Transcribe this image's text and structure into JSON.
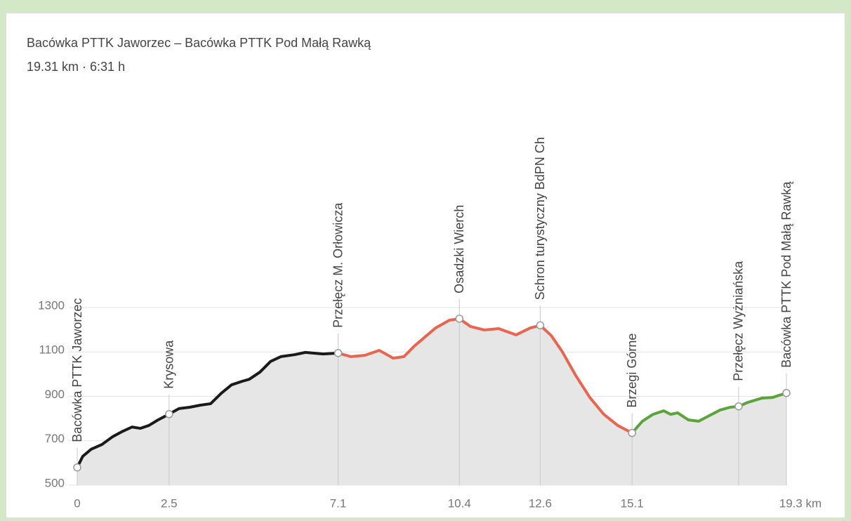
{
  "chart_data": {
    "type": "elevation-profile",
    "title": "Bacówka PTTK Jaworzec – Bacówka PTTK Pod Małą Rawką",
    "subtitle": "19.31 km · 6:31 h",
    "xlim": [
      0,
      19.3
    ],
    "ylim": [
      500,
      1300
    ],
    "xticks": [
      0,
      2.5,
      7.1,
      10.4,
      12.6,
      15.1,
      {
        "value": 19.3,
        "label": "19.3 km"
      }
    ],
    "yticks": [
      500,
      700,
      900,
      1100,
      1300
    ],
    "grid": true,
    "area_color": "#e6e6e6",
    "series": [
      {
        "color": "#1a1a1a",
        "x": [
          0,
          0.15,
          0.38,
          0.67,
          0.96,
          1.24,
          1.49,
          1.72,
          1.95,
          2.2,
          2.5,
          2.77,
          3.06,
          3.34,
          3.63,
          3.92,
          4.2,
          4.49,
          4.68,
          4.97,
          5.26,
          5.54,
          5.92,
          6.21,
          6.69,
          7.1
        ],
        "values": [
          580,
          630,
          662,
          683,
          718,
          743,
          762,
          756,
          769,
          794,
          820,
          845,
          851,
          860,
          867,
          914,
          952,
          968,
          977,
          1009,
          1057,
          1079,
          1088,
          1098,
          1091,
          1095
        ]
      },
      {
        "color": "#e8654f",
        "x": [
          7.1,
          7.45,
          7.83,
          8.22,
          8.6,
          8.89,
          9.17,
          9.46,
          9.75,
          10.13,
          10.4,
          10.7,
          11.08,
          11.47,
          11.94,
          12.33,
          12.6,
          12.9,
          13.19,
          13.57,
          13.95,
          14.33,
          14.71,
          15.1
        ],
        "values": [
          1095,
          1079,
          1085,
          1107,
          1072,
          1079,
          1126,
          1167,
          1208,
          1243,
          1250,
          1215,
          1199,
          1205,
          1177,
          1208,
          1220,
          1174,
          1104,
          993,
          895,
          819,
          769,
          735
        ]
      },
      {
        "color": "#5aa43a",
        "x": [
          15.1,
          15.38,
          15.67,
          15.96,
          16.15,
          16.34,
          16.63,
          16.91,
          17.2,
          17.49,
          17.77,
          18.0,
          18.25,
          18.63,
          18.92,
          19.3
        ],
        "values": [
          735,
          788,
          819,
          835,
          819,
          826,
          794,
          788,
          813,
          838,
          851,
          855,
          873,
          892,
          895,
          915
        ]
      }
    ],
    "waypoints": [
      {
        "name": "Bacówka PTTK Jaworzec",
        "x": 0,
        "elevation": 580
      },
      {
        "name": "Krysowa",
        "x": 2.5,
        "elevation": 820
      },
      {
        "name": "Przełęcz M. Orłowicza",
        "x": 7.1,
        "elevation": 1095
      },
      {
        "name": "Osadzki Wierch",
        "x": 10.4,
        "elevation": 1250
      },
      {
        "name": "Schron turystyczny BdPN Ch",
        "x": 12.6,
        "elevation": 1220
      },
      {
        "name": "Brzegi Górne",
        "x": 15.1,
        "elevation": 735
      },
      {
        "name": "Przełęcz Wyżniańska",
        "x": 18.0,
        "elevation": 855
      },
      {
        "name": "Bacówka PTTK Pod Małą Rawką",
        "x": 19.3,
        "elevation": 915
      }
    ]
  }
}
